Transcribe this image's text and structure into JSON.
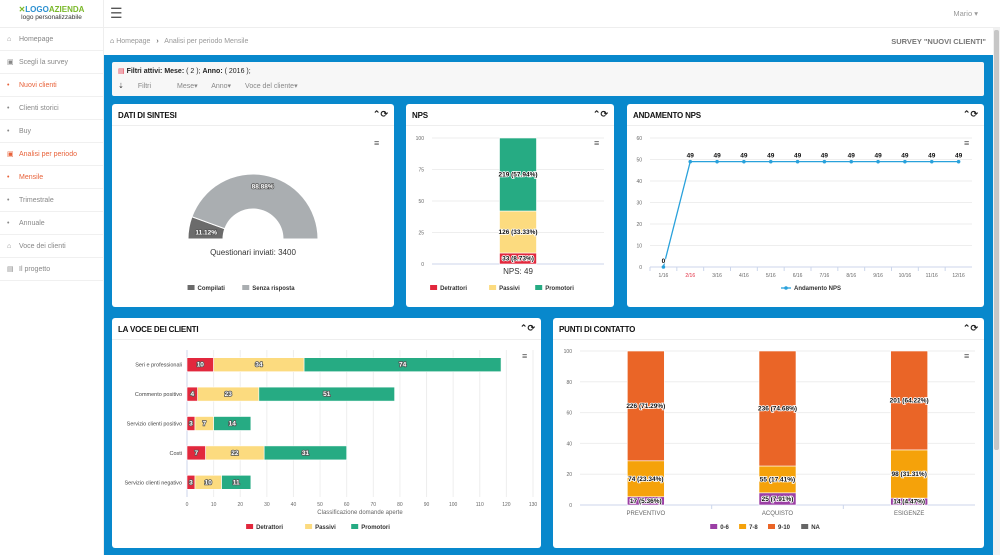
{
  "logo": {
    "brand_a": "LOGO",
    "brand_b": "AZIENDA",
    "tagline": "logo personalizzabile"
  },
  "sidebar": {
    "items": [
      {
        "label": "Homepage",
        "icon": "home-icon",
        "glyph": "⌂",
        "active": false
      },
      {
        "label": "Scegli la survey",
        "icon": "image-icon",
        "glyph": "▣",
        "active": false
      },
      {
        "label": "Nuovi clienti",
        "icon": "bullet-icon",
        "glyph": "•",
        "active": true
      },
      {
        "label": "Clienti storici",
        "icon": "bullet-icon",
        "glyph": "•",
        "active": false
      },
      {
        "label": "Buy",
        "icon": "bullet-icon",
        "glyph": "•",
        "active": false
      },
      {
        "label": "Analisi per periodo",
        "icon": "image-icon",
        "glyph": "▣",
        "active": true
      },
      {
        "label": "Mensile",
        "icon": "bullet-icon",
        "glyph": "•",
        "active": true
      },
      {
        "label": "Trimestrale",
        "icon": "bullet-icon",
        "glyph": "•",
        "active": false
      },
      {
        "label": "Annuale",
        "icon": "bullet-icon",
        "glyph": "•",
        "active": false
      },
      {
        "label": "Voce dei clienti",
        "icon": "home-icon",
        "glyph": "⌂",
        "active": false
      },
      {
        "label": "Il progetto",
        "icon": "document-icon",
        "glyph": "▤",
        "active": false
      }
    ]
  },
  "topbar": {
    "user": "Mario ▾"
  },
  "breadcrumb": {
    "home": "Homepage",
    "sep": "›",
    "current": "Analisi per periodo Mensile",
    "survey": "SURVEY \"NUOVI CLIENTI\""
  },
  "filters": {
    "active_label": "Filtri attivi:",
    "mese_label": "Mese:",
    "mese_value": "( 2 );",
    "anno_label": "Anno:",
    "anno_value": "( 2016 );",
    "buttons": [
      "Filtri",
      "Mese▾",
      "Anno▾",
      "Voce del cliente▾"
    ]
  },
  "colors": {
    "accent": "#0888cc",
    "active": "#e8623a",
    "detrattori": "#e2283d",
    "passivi": "#fcdb7f",
    "promotori": "#26ab83",
    "line": "#29a1db",
    "c06": "#9b3fa5",
    "c78": "#f5a20a",
    "c910": "#ea6527",
    "na": "#666666"
  },
  "chart_data": [
    {
      "id": "sintesi",
      "title": "DATI DI SINTESI",
      "type": "pie",
      "subtype": "semi-donut",
      "slices": [
        {
          "name": "Compilati",
          "value": 11.12,
          "label": "11.12%",
          "color": "#6b6b6b"
        },
        {
          "name": "Senza risposta",
          "value": 88.88,
          "label": "88.88%",
          "color": "#aaaeb1"
        }
      ],
      "caption": "Questionari inviati: 3400",
      "legend": "bottom"
    },
    {
      "id": "nps",
      "title": "NPS",
      "type": "bar",
      "stacked": true,
      "ylim": [
        0,
        100
      ],
      "yticks": [
        0,
        25,
        50,
        75,
        100
      ],
      "grid": true,
      "categories": [
        ""
      ],
      "series": [
        {
          "name": "Detrattori",
          "values": [
            8.73
          ],
          "labels": [
            "33 (8.73%)"
          ],
          "color": "#e2283d"
        },
        {
          "name": "Passivi",
          "values": [
            33.33
          ],
          "labels": [
            "126 (33.33%)"
          ],
          "color": "#fcdb7f"
        },
        {
          "name": "Promotori",
          "values": [
            57.94
          ],
          "labels": [
            "219 (57.94%)"
          ],
          "color": "#26ab83"
        }
      ],
      "caption": "NPS: 49",
      "legend": "bottom"
    },
    {
      "id": "andamento",
      "title": "ANDAMENTO NPS",
      "type": "line",
      "ylim": [
        0,
        60
      ],
      "yticks": [
        0,
        10,
        20,
        30,
        40,
        50,
        60
      ],
      "grid": true,
      "categories": [
        "1/16",
        "2/16",
        "3/16",
        "4/16",
        "5/16",
        "6/16",
        "7/16",
        "8/16",
        "9/16",
        "10/16",
        "11/16",
        "12/16"
      ],
      "highlight_category": "2/16",
      "series": [
        {
          "name": "Andamento NPS",
          "values": [
            0,
            49,
            49,
            49,
            49,
            49,
            49,
            49,
            49,
            49,
            49,
            49
          ],
          "color": "#29a1db"
        }
      ],
      "legend": "bottom"
    },
    {
      "id": "voce",
      "title": "LA VOCE DEI CLIENTI",
      "type": "bar",
      "orientation": "horizontal",
      "stacked": true,
      "xlim": [
        0,
        130
      ],
      "xticks": [
        0,
        10,
        20,
        30,
        40,
        50,
        60,
        70,
        80,
        90,
        100,
        110,
        120,
        130
      ],
      "xlabel": "Classificazione domande aperte",
      "grid": true,
      "categories": [
        "Seri e professionali",
        "Commento positivo",
        "Servizio clienti positivo",
        "Costi",
        "Servizio clienti negativo"
      ],
      "series": [
        {
          "name": "Detrattori",
          "values": [
            10,
            4,
            3,
            7,
            3
          ],
          "color": "#e2283d"
        },
        {
          "name": "Passivi",
          "values": [
            34,
            23,
            7,
            22,
            10
          ],
          "color": "#fcdb7f"
        },
        {
          "name": "Promotori",
          "values": [
            74,
            51,
            14,
            31,
            11
          ],
          "color": "#26ab83"
        }
      ],
      "legend": "bottom"
    },
    {
      "id": "punti",
      "title": "PUNTI DI CONTATTO",
      "type": "bar",
      "stacked": true,
      "ylim": [
        0,
        100
      ],
      "yticks": [
        0,
        20,
        40,
        60,
        80,
        100
      ],
      "grid": true,
      "categories": [
        "PREVENTIVO",
        "ACQUISTO",
        "ESIGENZE"
      ],
      "series": [
        {
          "name": "0-6",
          "values": [
            5.36,
            7.91,
            4.47
          ],
          "labels": [
            "17 (5.36%)",
            "25 (7.91%)",
            "14 (4.47%)"
          ],
          "color": "#9b3fa5"
        },
        {
          "name": "7-8",
          "values": [
            23.34,
            17.41,
            31.31
          ],
          "labels": [
            "74 (23.34%)",
            "55 (17.41%)",
            "98 (31.31%)"
          ],
          "color": "#f5a20a"
        },
        {
          "name": "9-10",
          "values": [
            71.29,
            74.68,
            64.22
          ],
          "labels": [
            "226 (71.29%)",
            "236 (74.68%)",
            "201 (64.22%)"
          ],
          "color": "#ea6527"
        },
        {
          "name": "NA",
          "values": [
            0,
            0,
            0
          ],
          "labels": [
            "",
            "",
            ""
          ],
          "color": "#666666"
        }
      ],
      "legend": "bottom"
    }
  ],
  "panel_controls": {
    "collapse": "⌃",
    "refresh": "⟳",
    "menu": "≡"
  }
}
